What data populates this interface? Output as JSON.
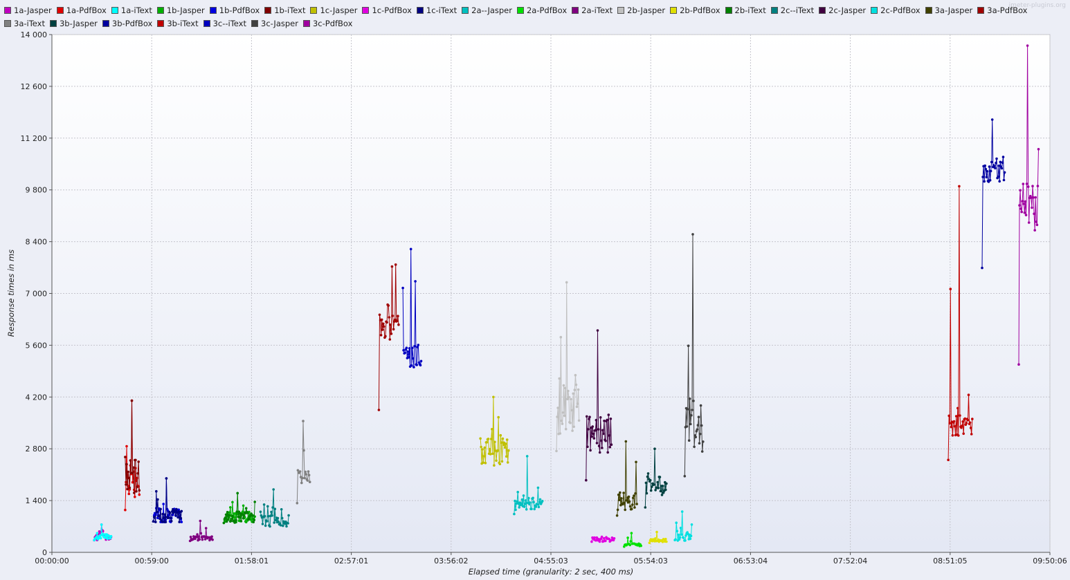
{
  "watermark": "jmeter-plugins.org",
  "chart_data": {
    "type": "line",
    "xlabel": "Elapsed time (granularity: 2 sec, 400 ms)",
    "ylabel": "Response times in ms",
    "ylim": [
      0,
      14000
    ],
    "y_ticks": [
      "0",
      "1 400",
      "2 800",
      "4 200",
      "5 600",
      "7 000",
      "8 400",
      "9 800",
      "11 200",
      "12 600",
      "14 000"
    ],
    "x_ticks": [
      "00:00:00",
      "00:59:00",
      "01:58:01",
      "02:57:01",
      "03:56:02",
      "04:55:03",
      "05:54:03",
      "06:53:04",
      "07:52:04",
      "08:51:05",
      "09:50:06"
    ],
    "xlim_seconds": [
      0,
      35406
    ],
    "grid": true,
    "legend_position": "top",
    "series": [
      {
        "name": "1a-Jasper",
        "color": "#c000c0",
        "start_s": 1500,
        "end_s": 2100,
        "base": 400,
        "min": 320,
        "max": 750,
        "spread": 80
      },
      {
        "name": "1a-PdfBox",
        "color": "#e00000",
        "start_s": 2600,
        "end_s": 3100,
        "base": 2000,
        "min": 1050,
        "max": 4100,
        "spread": 500
      },
      {
        "name": "1a-iText",
        "color": "#00ffff",
        "start_s": 1500,
        "end_s": 2100,
        "base": 420,
        "min": 320,
        "max": 750,
        "spread": 80
      },
      {
        "name": "1b-Jasper",
        "color": "#00b000",
        "start_s": 6100,
        "end_s": 7200,
        "base": 950,
        "min": 780,
        "max": 1600,
        "spread": 150
      },
      {
        "name": "1b-PdfBox",
        "color": "#0000e0",
        "start_s": 3600,
        "end_s": 4600,
        "base": 1000,
        "min": 820,
        "max": 2000,
        "spread": 200
      },
      {
        "name": "1b-iText",
        "color": "#800000",
        "start_s": 2600,
        "end_s": 3100,
        "base": 2000,
        "min": 1050,
        "max": 4100,
        "spread": 500
      },
      {
        "name": "1c-Jasper",
        "color": "#c0c000",
        "start_s": 15200,
        "end_s": 16200,
        "base": 2700,
        "min": 1950,
        "max": 4200,
        "spread": 400
      },
      {
        "name": "1c-PdfBox",
        "color": "#e000e0",
        "start_s": 19150,
        "end_s": 19950,
        "base": 350,
        "min": 280,
        "max": 600,
        "spread": 60
      },
      {
        "name": "1c-iText",
        "color": "#000080",
        "start_s": 3600,
        "end_s": 4600,
        "base": 1000,
        "min": 820,
        "max": 2000,
        "spread": 200
      },
      {
        "name": "2a--Jasper",
        "color": "#00c0c0",
        "start_s": 16400,
        "end_s": 17400,
        "base": 1350,
        "min": 1000,
        "max": 2600,
        "spread": 200
      },
      {
        "name": "2a-PdfBox",
        "color": "#00e000",
        "start_s": 20300,
        "end_s": 20900,
        "base": 200,
        "min": 150,
        "max": 520,
        "spread": 40
      },
      {
        "name": "2a-iText",
        "color": "#800080",
        "start_s": 4900,
        "end_s": 5700,
        "base": 380,
        "min": 300,
        "max": 850,
        "spread": 60
      },
      {
        "name": "2b-Jasper",
        "color": "#c0c0c0",
        "start_s": 17900,
        "end_s": 18700,
        "base": 4000,
        "min": 2600,
        "max": 7300,
        "spread": 800
      },
      {
        "name": "2b-PdfBox",
        "color": "#e0e000",
        "start_s": 21200,
        "end_s": 21800,
        "base": 330,
        "min": 250,
        "max": 550,
        "spread": 50
      },
      {
        "name": "2b-iText",
        "color": "#008000",
        "start_s": 6100,
        "end_s": 7200,
        "base": 950,
        "min": 780,
        "max": 1600,
        "spread": 150
      },
      {
        "name": "2c--iText",
        "color": "#008080",
        "start_s": 7400,
        "end_s": 8400,
        "base": 850,
        "min": 650,
        "max": 1700,
        "spread": 150
      },
      {
        "name": "2c-Jasper",
        "color": "#400040",
        "start_s": 18950,
        "end_s": 19850,
        "base": 3300,
        "min": 1800,
        "max": 6000,
        "spread": 600
      },
      {
        "name": "2c-PdfBox",
        "color": "#00e0e0",
        "start_s": 22100,
        "end_s": 22700,
        "base": 420,
        "min": 320,
        "max": 1100,
        "spread": 120
      },
      {
        "name": "3a-Jasper",
        "color": "#404000",
        "start_s": 20050,
        "end_s": 20750,
        "base": 1400,
        "min": 950,
        "max": 3000,
        "spread": 250
      },
      {
        "name": "3a-PdfBox",
        "color": "#a00000",
        "start_s": 11600,
        "end_s": 12300,
        "base": 6100,
        "min": 3600,
        "max": 8550,
        "spread": 350
      },
      {
        "name": "3a-iText",
        "color": "#808080",
        "start_s": 8700,
        "end_s": 9150,
        "base": 2050,
        "min": 1250,
        "max": 3550,
        "spread": 200
      },
      {
        "name": "3b-Jasper",
        "color": "#004040",
        "start_s": 21050,
        "end_s": 21800,
        "base": 1800,
        "min": 1150,
        "max": 2800,
        "spread": 250
      },
      {
        "name": "3b-PdfBox",
        "color": "#0000a0",
        "start_s": 33000,
        "end_s": 33800,
        "base": 10300,
        "min": 7400,
        "max": 11700,
        "spread": 400
      },
      {
        "name": "3b-iText",
        "color": "#c00000",
        "start_s": 31800,
        "end_s": 32650,
        "base": 3400,
        "min": 2400,
        "max": 9900,
        "spread": 300
      },
      {
        "name": "3c--iText",
        "color": "#0000c0",
        "start_s": 12450,
        "end_s": 13100,
        "base": 5300,
        "min": 3400,
        "max": 8200,
        "spread": 300
      },
      {
        "name": "3c-Jasper",
        "color": "#404040",
        "start_s": 22450,
        "end_s": 23100,
        "base": 3500,
        "min": 1900,
        "max": 8600,
        "spread": 800
      },
      {
        "name": "3c-PdfBox",
        "color": "#a000a0",
        "start_s": 34300,
        "end_s": 35000,
        "base": 9400,
        "min": 4600,
        "max": 13700,
        "spread": 700
      }
    ]
  }
}
